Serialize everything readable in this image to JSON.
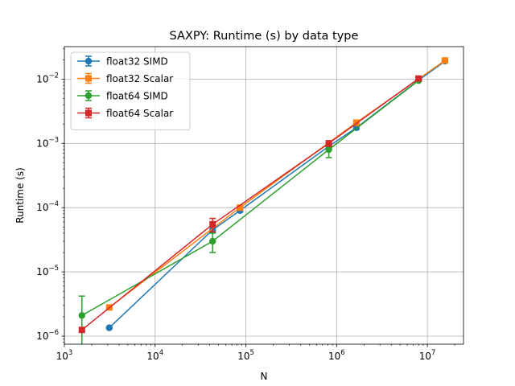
{
  "chart_data": {
    "type": "line",
    "title": "SAXPY: Runtime (s) by data type",
    "xlabel": "N",
    "ylabel": "Runtime (s)",
    "xscale": "log",
    "yscale": "log",
    "xlim": [
      1000,
      25000000
    ],
    "ylim": [
      7.5e-07,
      0.032
    ],
    "xticks": [
      {
        "value": 1000,
        "base": "10",
        "exp": "3"
      },
      {
        "value": 10000,
        "base": "10",
        "exp": "4"
      },
      {
        "value": 100000,
        "base": "10",
        "exp": "5"
      },
      {
        "value": 1000000,
        "base": "10",
        "exp": "6"
      },
      {
        "value": 10000000,
        "base": "10",
        "exp": "7"
      }
    ],
    "yticks": [
      {
        "value": 1e-06,
        "base": "10",
        "exp": "−6"
      },
      {
        "value": 1e-05,
        "base": "10",
        "exp": "−5"
      },
      {
        "value": 0.0001,
        "base": "10",
        "exp": "−4"
      },
      {
        "value": 0.001,
        "base": "10",
        "exp": "−3"
      },
      {
        "value": 0.01,
        "base": "10",
        "exp": "−2"
      }
    ],
    "grid": true,
    "legend": "upper-left",
    "series": [
      {
        "name": "float32 SIMD",
        "color": "#1f77b4",
        "marker": "circle",
        "points": [
          {
            "x": 3125,
            "y": 1.35e-06,
            "err": 5e-08
          },
          {
            "x": 43000,
            "y": 4.5e-05,
            "err": 4e-06
          },
          {
            "x": 86000,
            "y": 9e-05,
            "err": 5e-06
          },
          {
            "x": 820000,
            "y": 0.0009,
            "err": 5e-05
          },
          {
            "x": 1650000,
            "y": 0.00175,
            "err": 0.0001
          },
          {
            "x": 8000000,
            "y": 0.0096,
            "err": 0.0003
          },
          {
            "x": 15600000,
            "y": 0.019,
            "err": 0.0005
          }
        ]
      },
      {
        "name": "float32 Scalar",
        "color": "#ff7f0e",
        "marker": "square",
        "points": [
          {
            "x": 3125,
            "y": 2.8e-06,
            "err": 1e-07
          },
          {
            "x": 86000,
            "y": 0.0001,
            "err": 5e-06
          },
          {
            "x": 1650000,
            "y": 0.0021,
            "err": 0.0002
          },
          {
            "x": 15600000,
            "y": 0.0195,
            "err": 0.0005
          }
        ]
      },
      {
        "name": "float64 SIMD",
        "color": "#2ca02c",
        "marker": "circle",
        "points": [
          {
            "x": 1560,
            "y": 2.1e-06,
            "err": 2.1e-06
          },
          {
            "x": 43000,
            "y": 3e-05,
            "err": 1e-05
          },
          {
            "x": 820000,
            "y": 0.0008,
            "err": 0.0002
          },
          {
            "x": 8000000,
            "y": 0.0095,
            "err": 0.0003
          }
        ]
      },
      {
        "name": "float64 Scalar",
        "color": "#d62728",
        "marker": "square",
        "points": [
          {
            "x": 1560,
            "y": 1.25e-06,
            "err": 1e-07
          },
          {
            "x": 43000,
            "y": 5.5e-05,
            "err": 1.3e-05
          },
          {
            "x": 820000,
            "y": 0.001,
            "err": 0.0001
          },
          {
            "x": 8000000,
            "y": 0.0102,
            "err": 0.0005
          }
        ]
      }
    ]
  }
}
